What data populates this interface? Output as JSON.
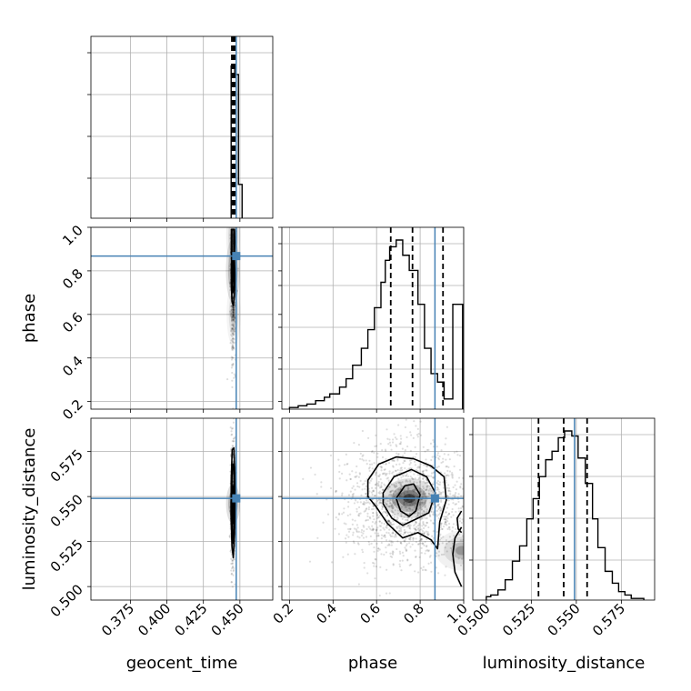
{
  "chart_data": {
    "type": "corner",
    "parameters": [
      "geocent_time",
      "phase",
      "luminosity_distance"
    ],
    "ranges": {
      "geocent_time": [
        0.348,
        0.4725
      ],
      "phase": [
        0.165,
        1.0
      ],
      "luminosity_distance": [
        0.4925,
        0.5935
      ]
    },
    "truths": {
      "geocent_time": 0.4475,
      "phase": 0.868,
      "luminosity_distance": 0.549
    },
    "truth_color": "#4682b4",
    "ticks": {
      "geocent_time": {
        "values": [
          0.375,
          0.4,
          0.425,
          0.45
        ],
        "labels": [
          "0.375",
          "0.400",
          "0.425",
          "0.450"
        ]
      },
      "phase": {
        "values": [
          0.2,
          0.4,
          0.6,
          0.8,
          1.0
        ],
        "labels": [
          "0.2",
          "0.4",
          "0.6",
          "0.8",
          "1.0"
        ]
      },
      "luminosity_distance": {
        "values": [
          0.5,
          0.525,
          0.55,
          0.575
        ],
        "labels": [
          "0.500",
          "0.525",
          "0.550",
          "0.575"
        ]
      }
    },
    "quantiles": {
      "geocent_time": [
        0.4445,
        0.4455,
        0.4465
      ],
      "phase": [
        0.665,
        0.765,
        0.905
      ],
      "luminosity_distance": [
        0.529,
        0.543,
        0.556
      ]
    },
    "histograms": {
      "geocent_time": {
        "edges": [
          0.444,
          0.4465,
          0.449,
          0.4515
        ],
        "counts": [
          0.9,
          0.85,
          0.2
        ]
      },
      "phase": {
        "edges": [
          0.2,
          0.24,
          0.28,
          0.32,
          0.36,
          0.385,
          0.43,
          0.46,
          0.49,
          0.53,
          0.56,
          0.59,
          0.62,
          0.64,
          0.66,
          0.69,
          0.72,
          0.75,
          0.79,
          0.82,
          0.85,
          0.88,
          0.91,
          0.95,
          0.995
        ],
        "counts": [
          0.01,
          0.02,
          0.03,
          0.05,
          0.07,
          0.09,
          0.13,
          0.18,
          0.26,
          0.36,
          0.47,
          0.6,
          0.75,
          0.88,
          0.96,
          1.0,
          0.91,
          0.82,
          0.62,
          0.36,
          0.21,
          0.16,
          0.06,
          0.62
        ]
      },
      "luminosity_distance": {
        "edges": [
          0.5,
          0.5025,
          0.5065,
          0.5105,
          0.5145,
          0.5185,
          0.5225,
          0.526,
          0.5295,
          0.533,
          0.5365,
          0.54,
          0.5435,
          0.5475,
          0.551,
          0.555,
          0.559,
          0.562,
          0.566,
          0.57,
          0.5735,
          0.577,
          0.5805,
          0.584,
          0.5875
        ],
        "counts": [
          0.02,
          0.03,
          0.06,
          0.12,
          0.23,
          0.32,
          0.48,
          0.6,
          0.73,
          0.83,
          0.88,
          0.96,
          1.0,
          0.97,
          0.84,
          0.69,
          0.48,
          0.31,
          0.17,
          0.1,
          0.05,
          0.03,
          0.01,
          0.01
        ]
      }
    },
    "contours": {
      "phase_vs_geocent_time": [
        [
          [
            0.4442,
            0.99
          ],
          [
            0.4463,
            0.99
          ],
          [
            0.4465,
            0.93
          ],
          [
            0.4462,
            0.86
          ],
          [
            0.4466,
            0.78
          ],
          [
            0.4463,
            0.69
          ],
          [
            0.4455,
            0.64
          ],
          [
            0.4446,
            0.66
          ],
          [
            0.4441,
            0.74
          ],
          [
            0.4443,
            0.83
          ],
          [
            0.4441,
            0.91
          ]
        ],
        [
          [
            0.4445,
            0.99
          ],
          [
            0.4459,
            0.99
          ],
          [
            0.4458,
            0.94
          ],
          [
            0.4459,
            0.86
          ],
          [
            0.4461,
            0.78
          ],
          [
            0.4457,
            0.71
          ],
          [
            0.4451,
            0.7
          ],
          [
            0.4446,
            0.74
          ],
          [
            0.4446,
            0.84
          ],
          [
            0.4445,
            0.92
          ]
        ],
        [
          [
            0.4449,
            0.86
          ],
          [
            0.4455,
            0.86
          ],
          [
            0.4456,
            0.79
          ],
          [
            0.4452,
            0.75
          ],
          [
            0.4448,
            0.78
          ]
        ]
      ],
      "luminosity_distance_vs_geocent_time": [
        [
          [
            0.4447,
            0.576
          ],
          [
            0.4459,
            0.577
          ],
          [
            0.4464,
            0.566
          ],
          [
            0.4468,
            0.55
          ],
          [
            0.4463,
            0.528
          ],
          [
            0.4455,
            0.516
          ],
          [
            0.4446,
            0.522
          ],
          [
            0.4439,
            0.54
          ],
          [
            0.4441,
            0.56
          ]
        ],
        [
          [
            0.445,
            0.568
          ],
          [
            0.4457,
            0.568
          ],
          [
            0.4461,
            0.555
          ],
          [
            0.4459,
            0.535
          ],
          [
            0.4454,
            0.524
          ],
          [
            0.4447,
            0.53
          ],
          [
            0.4444,
            0.548
          ],
          [
            0.4446,
            0.562
          ]
        ],
        [
          [
            0.4451,
            0.556
          ],
          [
            0.4456,
            0.555
          ],
          [
            0.4457,
            0.542
          ],
          [
            0.4453,
            0.535
          ],
          [
            0.4449,
            0.542
          ]
        ]
      ],
      "luminosity_distance_vs_phase": [
        [
          [
            0.56,
            0.559
          ],
          [
            0.61,
            0.568
          ],
          [
            0.69,
            0.572
          ],
          [
            0.77,
            0.571
          ],
          [
            0.85,
            0.567
          ],
          [
            0.91,
            0.561
          ],
          [
            0.92,
            0.548
          ],
          [
            0.89,
            0.536
          ],
          [
            0.88,
            0.521
          ],
          [
            0.85,
            0.526
          ],
          [
            0.79,
            0.53
          ],
          [
            0.72,
            0.527
          ],
          [
            0.65,
            0.535
          ],
          [
            0.6,
            0.544
          ],
          [
            0.56,
            0.55
          ]
        ],
        [
          [
            0.63,
            0.552
          ],
          [
            0.68,
            0.561
          ],
          [
            0.76,
            0.565
          ],
          [
            0.83,
            0.561
          ],
          [
            0.87,
            0.552
          ],
          [
            0.84,
            0.541
          ],
          [
            0.79,
            0.538
          ],
          [
            0.72,
            0.534
          ],
          [
            0.67,
            0.538
          ],
          [
            0.63,
            0.546
          ]
        ],
        [
          [
            0.69,
            0.549
          ],
          [
            0.73,
            0.556
          ],
          [
            0.77,
            0.557
          ],
          [
            0.8,
            0.551
          ],
          [
            0.78,
            0.542
          ],
          [
            0.75,
            0.539
          ],
          [
            0.71,
            0.542
          ]
        ],
        [
          [
            0.99,
            0.533
          ],
          [
            0.96,
            0.527
          ],
          [
            0.95,
            0.518
          ],
          [
            0.96,
            0.508
          ],
          [
            0.99,
            0.5
          ]
        ],
        [
          [
            0.99,
            0.542
          ],
          [
            0.97,
            0.538
          ],
          [
            0.975,
            0.532
          ],
          [
            0.99,
            0.53
          ]
        ]
      ]
    },
    "density_peaks": {
      "phase_vs_geocent_time": [
        [
          0.4452,
          0.8,
          0.9
        ],
        [
          0.4454,
          0.96,
          0.5
        ],
        [
          0.4457,
          0.6,
          0.35
        ]
      ],
      "luminosity_distance_vs_geocent_time": [
        [
          0.4453,
          0.546,
          1.0
        ]
      ],
      "luminosity_distance_vs_phase": [
        [
          0.75,
          0.549,
          1.0
        ],
        [
          0.99,
          0.52,
          0.45
        ]
      ]
    }
  }
}
